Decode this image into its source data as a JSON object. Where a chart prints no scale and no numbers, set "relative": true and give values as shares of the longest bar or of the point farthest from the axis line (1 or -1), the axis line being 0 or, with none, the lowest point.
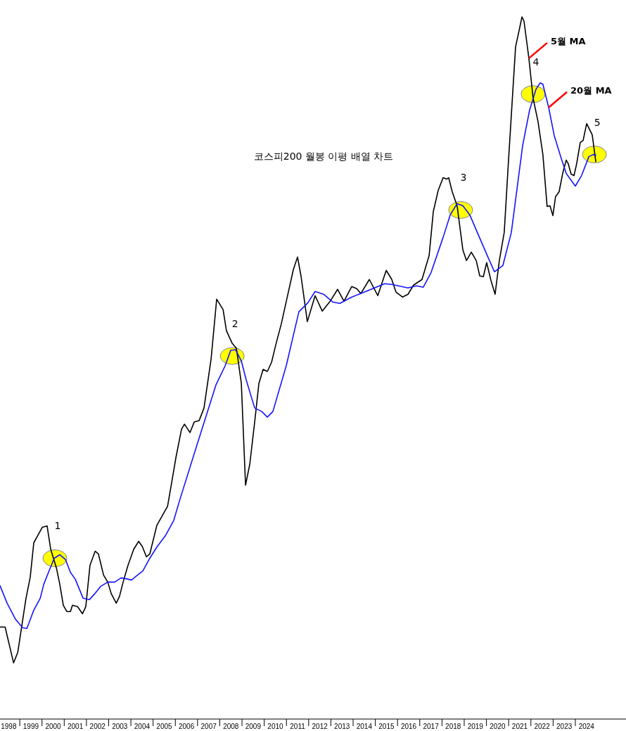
{
  "chart_data": {
    "type": "line",
    "title": "코스피200 월봉 이평 배열 차트",
    "relative": true,
    "xlim": [
      1998.11,
      2026.28
    ],
    "xticks": [
      {
        "value": 1998.5,
        "label": "1998"
      },
      {
        "value": 1999,
        "label": null
      },
      {
        "value": 1999.5,
        "label": "1999"
      },
      {
        "value": 2000,
        "label": null
      },
      {
        "value": 2000.5,
        "label": "2000"
      },
      {
        "value": 2001,
        "label": null
      },
      {
        "value": 2001.5,
        "label": "2001"
      },
      {
        "value": 2002,
        "label": null
      },
      {
        "value": 2002.5,
        "label": "2002"
      },
      {
        "value": 2003,
        "label": null
      },
      {
        "value": 2003.5,
        "label": "2003"
      },
      {
        "value": 2004,
        "label": null
      },
      {
        "value": 2004.5,
        "label": "2004"
      },
      {
        "value": 2005,
        "label": null
      },
      {
        "value": 2005.5,
        "label": "2005"
      },
      {
        "value": 2006,
        "label": null
      },
      {
        "value": 2006.5,
        "label": "2006"
      },
      {
        "value": 2007,
        "label": null
      },
      {
        "value": 2007.5,
        "label": "2007"
      },
      {
        "value": 2008,
        "label": null
      },
      {
        "value": 2008.5,
        "label": "2008"
      },
      {
        "value": 2009,
        "label": null
      },
      {
        "value": 2009.5,
        "label": "2009"
      },
      {
        "value": 2010,
        "label": null
      },
      {
        "value": 2010.5,
        "label": "2010"
      },
      {
        "value": 2011,
        "label": null
      },
      {
        "value": 2011.5,
        "label": "2011"
      },
      {
        "value": 2012,
        "label": null
      },
      {
        "value": 2012.5,
        "label": "2012"
      },
      {
        "value": 2013,
        "label": null
      },
      {
        "value": 2013.5,
        "label": "2013"
      },
      {
        "value": 2014,
        "label": null
      },
      {
        "value": 2014.5,
        "label": "2014"
      },
      {
        "value": 2015,
        "label": null
      },
      {
        "value": 2015.5,
        "label": "2015"
      },
      {
        "value": 2016,
        "label": null
      },
      {
        "value": 2016.5,
        "label": "2016"
      },
      {
        "value": 2017,
        "label": null
      },
      {
        "value": 2017.5,
        "label": "2017"
      },
      {
        "value": 2018,
        "label": null
      },
      {
        "value": 2018.5,
        "label": "2018"
      },
      {
        "value": 2019,
        "label": null
      },
      {
        "value": 2019.5,
        "label": "2019"
      },
      {
        "value": 2020,
        "label": null
      },
      {
        "value": 2020.5,
        "label": "2020"
      },
      {
        "value": 2021,
        "label": null
      },
      {
        "value": 2021.5,
        "label": "2021"
      },
      {
        "value": 2022,
        "label": null
      },
      {
        "value": 2022.5,
        "label": "2022"
      },
      {
        "value": 2023,
        "label": null
      },
      {
        "value": 2023.5,
        "label": "2023"
      },
      {
        "value": 2024,
        "label": null
      },
      {
        "value": 2024.5,
        "label": "2024"
      }
    ],
    "series": [
      {
        "name": "5월 MA",
        "color": "#000000",
        "x": [
          1998.11,
          1998.34,
          1998.72,
          1998.91,
          1999.28,
          1999.47,
          1999.63,
          2000.01,
          2000.23,
          2000.39,
          2000.65,
          2000.8,
          2000.96,
          2001.12,
          2001.28,
          2001.37,
          2001.6,
          2001.82,
          2001.97,
          2002.16,
          2002.39,
          2002.54,
          2002.77,
          2002.96,
          2003.11,
          2003.34,
          2003.49,
          2003.65,
          2003.87,
          2004.13,
          2004.35,
          2004.51,
          2004.7,
          2004.85,
          2005.17,
          2005.65,
          2005.87,
          2006.03,
          2006.28,
          2006.41,
          2006.66,
          2006.85,
          2007.07,
          2007.29,
          2007.61,
          2007.86,
          2008.15,
          2008.3,
          2008.56,
          2008.75,
          2008.97,
          2009.16,
          2009.35,
          2009.57,
          2009.76,
          2009.95,
          2010.14,
          2010.33,
          2010.52,
          2010.77,
          2011.03,
          2011.31,
          2011.5,
          2011.66,
          2011.94,
          2012.29,
          2012.61,
          2012.99,
          2013.3,
          2013.59,
          2013.94,
          2014.16,
          2014.35,
          2014.73,
          2015.11,
          2015.49,
          2015.74,
          2015.93,
          2016.22,
          2016.47,
          2016.72,
          2017.1,
          2017.42,
          2017.61,
          2017.83,
          2018.05,
          2018.21,
          2018.3,
          2018.46,
          2018.68,
          2018.94,
          2019.1,
          2019.32,
          2019.54,
          2019.7,
          2019.86,
          2020.01,
          2020.2,
          2020.39,
          2020.58,
          2020.8,
          2020.99,
          2021.31,
          2021.6,
          2021.69,
          2021.91,
          2022.1,
          2022.32,
          2022.54,
          2022.73,
          2022.86,
          2022.99,
          2023.11,
          2023.27,
          2023.43,
          2023.59,
          2023.68,
          2023.81,
          2023.94,
          2024.06,
          2024.22,
          2024.35,
          2024.51,
          2024.76,
          2024.92
        ],
        "values": [
          0.131,
          0.131,
          0.08,
          0.095,
          0.172,
          0.202,
          0.251,
          0.273,
          0.275,
          0.242,
          0.215,
          0.192,
          0.162,
          0.153,
          0.153,
          0.162,
          0.16,
          0.15,
          0.16,
          0.219,
          0.239,
          0.235,
          0.205,
          0.195,
          0.179,
          0.165,
          0.175,
          0.195,
          0.219,
          0.242,
          0.253,
          0.246,
          0.231,
          0.235,
          0.276,
          0.303,
          0.343,
          0.373,
          0.413,
          0.42,
          0.408,
          0.423,
          0.425,
          0.443,
          0.513,
          0.598,
          0.583,
          0.553,
          0.535,
          0.528,
          0.478,
          0.333,
          0.363,
          0.423,
          0.478,
          0.498,
          0.495,
          0.508,
          0.533,
          0.563,
          0.6,
          0.64,
          0.658,
          0.63,
          0.566,
          0.603,
          0.581,
          0.596,
          0.612,
          0.595,
          0.616,
          0.613,
          0.606,
          0.626,
          0.603,
          0.639,
          0.626,
          0.608,
          0.601,
          0.605,
          0.618,
          0.626,
          0.66,
          0.723,
          0.753,
          0.771,
          0.769,
          0.771,
          0.751,
          0.731,
          0.668,
          0.653,
          0.665,
          0.653,
          0.631,
          0.63,
          0.65,
          0.625,
          0.605,
          0.653,
          0.693,
          0.794,
          0.957,
          1.0,
          0.994,
          0.941,
          0.884,
          0.851,
          0.804,
          0.73,
          0.731,
          0.717,
          0.744,
          0.751,
          0.777,
          0.796,
          0.791,
          0.776,
          0.774,
          0.791,
          0.821,
          0.824,
          0.848,
          0.832,
          0.794
        ]
      },
      {
        "name": "20월 MA",
        "color": "#1414ff",
        "x": [
          1998.11,
          1998.43,
          1998.81,
          1999.13,
          1999.32,
          1999.63,
          1999.92,
          2000.08,
          2000.33,
          2000.55,
          2000.8,
          2001.06,
          2001.28,
          2001.5,
          2001.85,
          2002.13,
          2002.39,
          2002.64,
          2002.96,
          2003.27,
          2003.56,
          2003.75,
          2004.03,
          2004.22,
          2004.54,
          2004.85,
          2005.17,
          2005.55,
          2005.93,
          2006.18,
          2006.97,
          2007.83,
          2008.24,
          2008.49,
          2008.71,
          2008.97,
          2009.19,
          2009.57,
          2009.89,
          2010.14,
          2010.39,
          2010.99,
          2011.56,
          2011.97,
          2012.29,
          2012.67,
          2013.08,
          2013.4,
          2013.94,
          2014.73,
          2015.42,
          2015.74,
          2016.47,
          2016.85,
          2017.16,
          2017.51,
          2018.05,
          2018.37,
          2018.68,
          2018.94,
          2019.25,
          2019.63,
          2020.04,
          2020.36,
          2020.74,
          2021.12,
          2021.63,
          2021.94,
          2022.23,
          2022.42,
          2022.54,
          2022.8,
          2023.05,
          2023.34,
          2023.59,
          2024.0,
          2024.28,
          2024.61,
          2024.81,
          2024.92
        ],
        "values": [
          0.19,
          0.165,
          0.142,
          0.13,
          0.129,
          0.155,
          0.172,
          0.192,
          0.212,
          0.229,
          0.234,
          0.227,
          0.209,
          0.199,
          0.172,
          0.17,
          0.179,
          0.189,
          0.195,
          0.195,
          0.201,
          0.2,
          0.198,
          0.203,
          0.211,
          0.229,
          0.245,
          0.261,
          0.283,
          0.31,
          0.39,
          0.476,
          0.503,
          0.525,
          0.526,
          0.51,
          0.483,
          0.443,
          0.438,
          0.43,
          0.438,
          0.503,
          0.58,
          0.593,
          0.609,
          0.605,
          0.594,
          0.592,
          0.601,
          0.611,
          0.62,
          0.619,
          0.614,
          0.617,
          0.615,
          0.636,
          0.686,
          0.718,
          0.734,
          0.731,
          0.718,
          0.69,
          0.66,
          0.637,
          0.646,
          0.693,
          0.817,
          0.867,
          0.897,
          0.906,
          0.904,
          0.871,
          0.831,
          0.801,
          0.777,
          0.759,
          0.774,
          0.801,
          0.804,
          0.803
        ]
      },
      {
        "type": "scatter",
        "marker": "circle",
        "color": "#ffff00",
        "x": [
          2000.58,
          2008.56,
          2018.84,
          2022.1,
          2024.86
        ],
        "values": [
          0.229,
          0.517,
          0.725,
          0.89,
          0.804
        ]
      }
    ],
    "annotations": [
      "1",
      "2",
      "3",
      "4",
      "5"
    ]
  }
}
